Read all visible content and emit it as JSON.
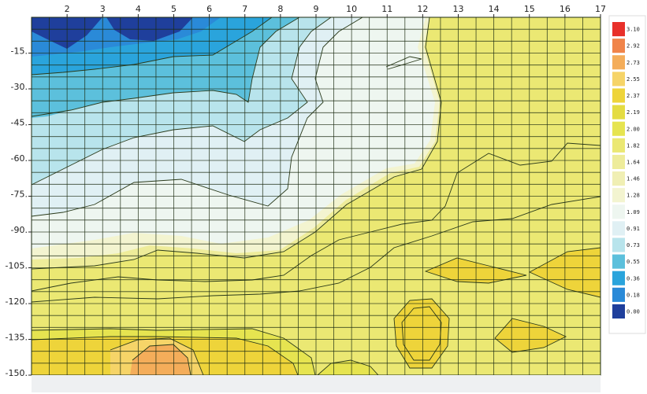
{
  "chart_data": {
    "type": "heatmap",
    "title": "",
    "xlabel": "",
    "ylabel": "",
    "x_ticks": [
      2,
      3,
      4,
      5,
      6,
      7,
      8,
      9,
      10,
      11,
      12,
      13,
      14,
      15,
      16,
      17
    ],
    "y_ticks": [
      -15,
      -30,
      -45,
      -60,
      -75,
      -90,
      -105,
      -120,
      -135,
      -150
    ],
    "xlim": [
      1,
      17
    ],
    "ylim": [
      -150,
      0
    ],
    "grid": true,
    "colorbar": {
      "position": "right",
      "levels": [
        "3.10",
        "2.92",
        "2.73",
        "2.55",
        "2.37",
        "2.19",
        "2.00",
        "1.82",
        "1.64",
        "1.46",
        "1.28",
        "1.09",
        "0.91",
        "0.73",
        "0.55",
        "0.36",
        "0.18",
        "0.00"
      ],
      "colors": [
        "#e8302a",
        "#f0844a",
        "#f4ad5a",
        "#f6d468",
        "#eed43a",
        "#e4dc42",
        "#e6e450",
        "#ebe873",
        "#eeec9a",
        "#f0efb4",
        "#f3f4d0",
        "#eef6f0",
        "#e0f0f4",
        "#b8e4ec",
        "#5cc0dc",
        "#2aa4dc",
        "#2a8ad8",
        "#1f3f9c"
      ]
    }
  }
}
